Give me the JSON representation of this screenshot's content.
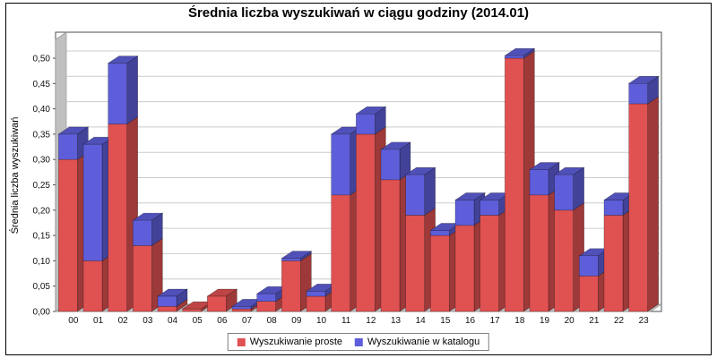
{
  "chart_data": {
    "type": "bar",
    "stacked": true,
    "effect": "3d",
    "title": "Średnia liczba wyszukiwań w ciągu godziny (2014.01)",
    "ylabel": "Średnia liczba wyszukiwań",
    "xlabel": "",
    "categories": [
      "00",
      "01",
      "02",
      "03",
      "04",
      "05",
      "06",
      "07",
      "08",
      "09",
      "10",
      "11",
      "12",
      "13",
      "14",
      "15",
      "16",
      "17",
      "18",
      "19",
      "20",
      "21",
      "22",
      "23"
    ],
    "series": [
      {
        "name": "Wyszukiwanie proste",
        "color": "#E05151",
        "values": [
          0.3,
          0.1,
          0.37,
          0.13,
          0.01,
          0.005,
          0.03,
          0.005,
          0.02,
          0.1,
          0.03,
          0.23,
          0.35,
          0.26,
          0.19,
          0.15,
          0.17,
          0.19,
          0.5,
          0.23,
          0.2,
          0.07,
          0.19,
          0.41
        ]
      },
      {
        "name": "Wyszukiwanie w katalogu",
        "color": "#5E5EDA",
        "values": [
          0.05,
          0.23,
          0.12,
          0.05,
          0.02,
          0,
          0,
          0.005,
          0.015,
          0.005,
          0.01,
          0.12,
          0.04,
          0.06,
          0.08,
          0.01,
          0.05,
          0.03,
          0.005,
          0.05,
          0.07,
          0.04,
          0.03,
          0.04
        ]
      }
    ],
    "ylim": [
      0,
      0.5
    ],
    "ytick_step": 0.05,
    "ytick_labels": [
      "0,00",
      "0,05",
      "0,10",
      "0,15",
      "0,20",
      "0,25",
      "0,30",
      "0,35",
      "0,40",
      "0,45",
      "0,50"
    ],
    "decimal_separator": ",",
    "grid": true,
    "legend_position": "bottom",
    "colors": {
      "wall": "#C0C0C0",
      "gridline": "#CCCCCC",
      "plot_background": "#FFFFFF",
      "plot_border": "#4D4D4D",
      "text": "#000000"
    }
  }
}
